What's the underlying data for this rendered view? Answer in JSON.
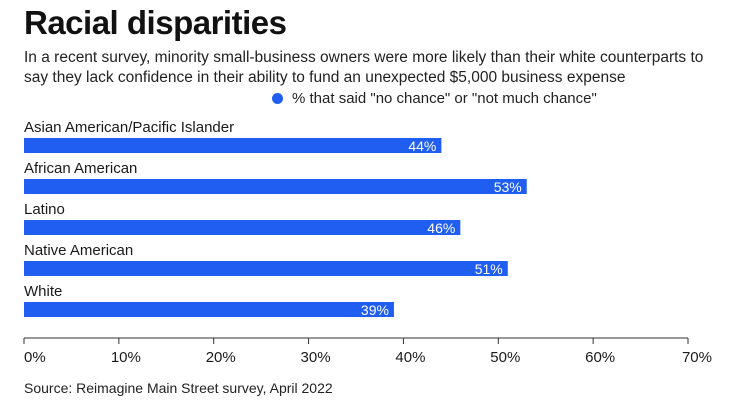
{
  "header": {
    "title": "Racial disparities",
    "subtitle": "In a recent survey, minority small-business owners were more likely than their white counterparts to say they lack confidence in their ability to fund an unexpected $5,000 business expense"
  },
  "footer": {
    "source": "Source: Reimagine Main Street survey, April 2022"
  },
  "chart_data": {
    "type": "bar",
    "orientation": "horizontal",
    "categories": [
      "Asian American/Pacific Islander",
      "African American",
      "Latino",
      "Native American",
      "White"
    ],
    "series": [
      {
        "name": "% that said \"no chance\" or \"not much chance\"",
        "values": [
          44,
          53,
          46,
          51,
          39
        ],
        "value_labels": [
          "44%",
          "53%",
          "46%",
          "51%",
          "39%"
        ],
        "color": "#1f5ef0"
      }
    ],
    "xlim": [
      0,
      70
    ],
    "xticks": [
      0,
      10,
      20,
      30,
      40,
      50,
      60,
      70
    ],
    "xtick_labels": [
      "0%",
      "10%",
      "20%",
      "30%",
      "40%",
      "50%",
      "60%",
      "70%"
    ],
    "grid": false,
    "legend_position": "top"
  }
}
